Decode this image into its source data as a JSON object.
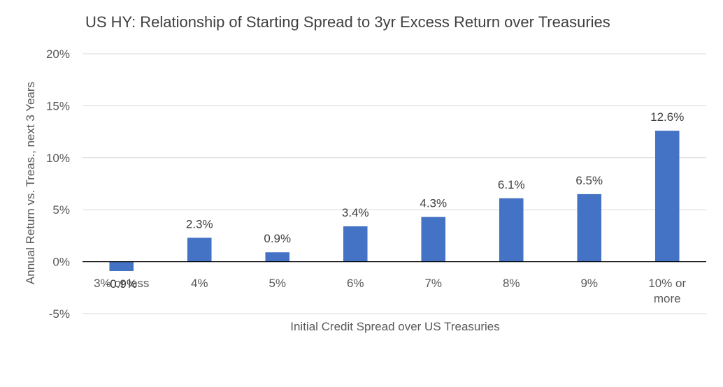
{
  "chart_data": {
    "type": "bar",
    "title": "US HY: Relationship of Starting Spread to 3yr Excess Return over Treasuries",
    "xlabel": "Initial Credit Spread over US Treasuries",
    "ylabel": "Annual Return vs. Treas., next 3 Years",
    "categories": [
      "3% or less",
      "4%",
      "5%",
      "6%",
      "7%",
      "8%",
      "9%",
      "10% or more"
    ],
    "values": [
      -0.9,
      2.3,
      0.9,
      3.4,
      4.3,
      6.1,
      6.5,
      12.6
    ],
    "data_labels": [
      "-0.9%",
      "2.3%",
      "0.9%",
      "3.4%",
      "4.3%",
      "6.1%",
      "6.5%",
      "12.6%"
    ],
    "ylim": [
      -5,
      20
    ],
    "yticks": [
      -5,
      0,
      5,
      10,
      15,
      20
    ],
    "ytick_labels": [
      "-5%",
      "0%",
      "5%",
      "10%",
      "15%",
      "20%"
    ],
    "grid": true,
    "legend": "none",
    "colors": {
      "bar": "#4472c4",
      "grid": "#d9d9d9",
      "zero_line": "#000000"
    }
  }
}
